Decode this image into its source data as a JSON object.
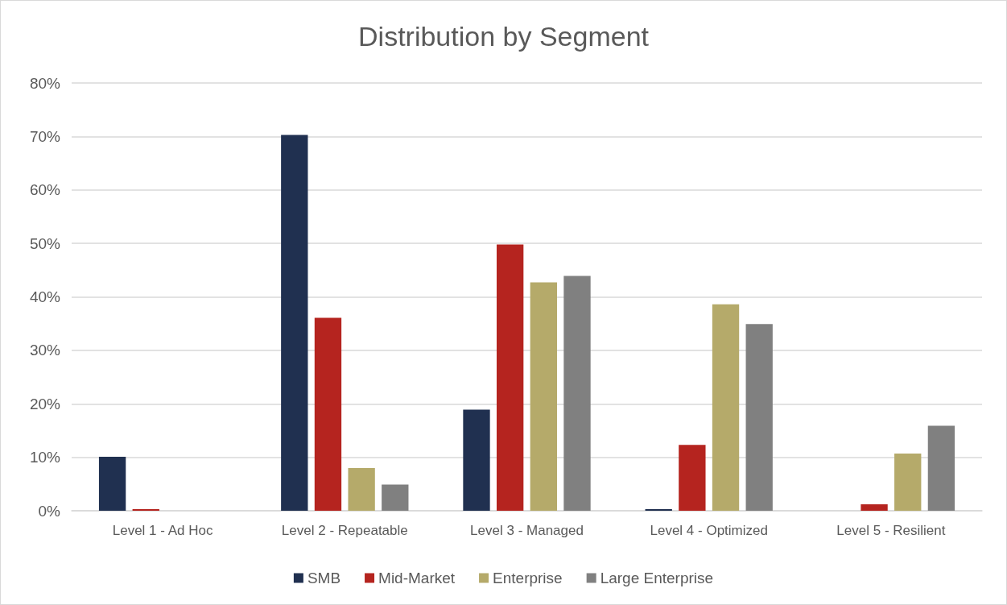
{
  "chart_data": {
    "type": "bar",
    "title": "Distribution by Segment",
    "categories": [
      "Level 1 - Ad Hoc",
      "Level 2 - Repeatable",
      "Level 3 - Managed",
      "Level 4 - Optimized",
      "Level 5 - Resilient"
    ],
    "series": [
      {
        "name": "SMB",
        "color": "#203050",
        "values": [
          10.1,
          70.3,
          18.9,
          0.3,
          0
        ]
      },
      {
        "name": "Mid-Market",
        "color": "#b5241f",
        "values": [
          0.3,
          36.1,
          49.8,
          12.3,
          1.2
        ]
      },
      {
        "name": "Enterprise",
        "color": "#b5aa6a",
        "values": [
          0,
          8.0,
          42.7,
          38.6,
          10.7
        ]
      },
      {
        "name": "Large Enterprise",
        "color": "#808080",
        "values": [
          0,
          4.9,
          43.9,
          34.9,
          15.9
        ]
      }
    ],
    "ylim": [
      0,
      80
    ],
    "yticks": [
      {
        "value": 0,
        "label": "0%"
      },
      {
        "value": 10,
        "label": "10%"
      },
      {
        "value": 20,
        "label": "20%"
      },
      {
        "value": 30,
        "label": "30%"
      },
      {
        "value": 40,
        "label": "40%"
      },
      {
        "value": 50,
        "label": "50%"
      },
      {
        "value": 60,
        "label": "60%"
      },
      {
        "value": 70,
        "label": "70%"
      },
      {
        "value": 80,
        "label": "80%"
      }
    ],
    "grid": "y",
    "legend": "bottom"
  }
}
